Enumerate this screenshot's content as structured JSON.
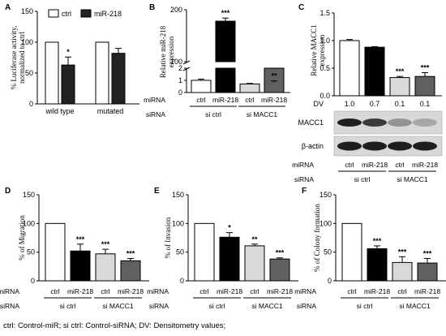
{
  "footnote": "ctrl: Control-miR; si ctrl: Control-siRNA; DV: Densitometry values;",
  "colors": {
    "white": "#ffffff",
    "black": "#000000",
    "light_gray": "#d9d9d9",
    "dark_gray": "#606060",
    "axis": "#000000"
  },
  "chart_data": [
    {
      "panel": "A",
      "type": "bar",
      "ylabel": "% Luciferase activity, normalized to ctrl",
      "ylim": [
        0,
        150
      ],
      "yticks": [
        0,
        50,
        100,
        150
      ],
      "categories": [
        "wild type",
        "mutated"
      ],
      "legend": {
        "position": "top",
        "entries": [
          {
            "name": "ctrl",
            "color": "#ffffff"
          },
          {
            "name": "miR-218",
            "color": "#222222"
          }
        ]
      },
      "series": [
        {
          "name": "ctrl",
          "color": "#ffffff",
          "values": [
            100,
            100
          ],
          "errors": [
            0,
            0
          ],
          "stars": [
            "",
            ""
          ]
        },
        {
          "name": "miR-218",
          "color": "#222222",
          "values": [
            63,
            82
          ],
          "errors": [
            13,
            8
          ],
          "stars": [
            "*",
            ""
          ]
        }
      ]
    },
    {
      "panel": "B",
      "type": "bar",
      "ylabel": "Relative miR-218 expression",
      "broken_axis": true,
      "yticks": [
        0,
        1,
        2,
        100,
        200
      ],
      "bars": [
        {
          "miRNA": "ctrl",
          "value": 1.0,
          "error": 0.1,
          "color": "#ffffff",
          "star": ""
        },
        {
          "miRNA": "miR-218",
          "value": 178,
          "error": 6,
          "color": "#000000",
          "star": "***"
        },
        {
          "miRNA": "ctrl",
          "value": 0.7,
          "error": 0.05,
          "color": "#d9d9d9",
          "star": ""
        },
        {
          "miRNA": "miR-218",
          "value": 60,
          "error": 3,
          "color": "#606060",
          "star": "**"
        }
      ],
      "row_labels": {
        "miRNA": "miRNA",
        "siRNA": "siRNA"
      },
      "groups": [
        "si ctrl",
        "si MACC1"
      ]
    },
    {
      "panel": "C",
      "type": "bar",
      "ylabel": "Relative MACC1 expression",
      "ylim": [
        0,
        1.5
      ],
      "yticks": [
        "0.0",
        "0.5",
        "1.0",
        "1.5"
      ],
      "bars": [
        {
          "miRNA": "ctrl",
          "value": 1.0,
          "error": 0.02,
          "color": "#ffffff",
          "star": ""
        },
        {
          "miRNA": "miR-218",
          "value": 0.88,
          "error": 0.01,
          "color": "#000000",
          "star": ""
        },
        {
          "miRNA": "ctrl",
          "value": 0.33,
          "error": 0.02,
          "color": "#d9d9d9",
          "star": "***"
        },
        {
          "miRNA": "miR-218",
          "value": 0.35,
          "error": 0.07,
          "color": "#606060",
          "star": "***"
        }
      ],
      "dv_label": "DV",
      "dv_values": [
        "1.0",
        "0.7",
        "0.1",
        "0.1"
      ],
      "blot_labels": [
        "MACC1",
        "β-actin"
      ],
      "row_labels": {
        "miRNA": "miRNA",
        "siRNA": "siRNA"
      },
      "groups": [
        "si ctrl",
        "si MACC1"
      ]
    },
    {
      "panel": "D",
      "type": "bar",
      "ylabel": "% of Migration",
      "ylim": [
        0,
        150
      ],
      "yticks": [
        0,
        50,
        100,
        150
      ],
      "bars": [
        {
          "miRNA": "ctrl",
          "value": 100,
          "error": 0,
          "color": "#ffffff",
          "star": ""
        },
        {
          "miRNA": "miR-218",
          "value": 52,
          "error": 12,
          "color": "#000000",
          "star": "***"
        },
        {
          "miRNA": "ctrl",
          "value": 47,
          "error": 8,
          "color": "#d9d9d9",
          "star": "***"
        },
        {
          "miRNA": "miR-218",
          "value": 35,
          "error": 4,
          "color": "#606060",
          "star": "***"
        }
      ],
      "row_labels": {
        "miRNA": "miRNA",
        "siRNA": "siRNA"
      },
      "groups": [
        "si ctrl",
        "si MACC1"
      ]
    },
    {
      "panel": "E",
      "type": "bar",
      "ylabel": "% of Invasion",
      "ylim": [
        0,
        150
      ],
      "yticks": [
        0,
        50,
        100,
        150
      ],
      "bars": [
        {
          "miRNA": "ctrl",
          "value": 100,
          "error": 0,
          "color": "#ffffff",
          "star": ""
        },
        {
          "miRNA": "miR-218",
          "value": 76,
          "error": 8,
          "color": "#000000",
          "star": "*"
        },
        {
          "miRNA": "ctrl",
          "value": 61,
          "error": 3,
          "color": "#d9d9d9",
          "star": "**"
        },
        {
          "miRNA": "miR-218",
          "value": 38,
          "error": 2,
          "color": "#606060",
          "star": "***"
        }
      ],
      "row_labels": {
        "miRNA": "miRNA",
        "siRNA": "siRNA"
      },
      "groups": [
        "si ctrl",
        "si MACC1"
      ]
    },
    {
      "panel": "F",
      "type": "bar",
      "ylabel": "% of Colony formation",
      "ylim": [
        0,
        150
      ],
      "yticks": [
        0,
        50,
        100,
        150
      ],
      "bars": [
        {
          "miRNA": "ctrl",
          "value": 100,
          "error": 0,
          "color": "#ffffff",
          "star": ""
        },
        {
          "miRNA": "miR-218",
          "value": 56,
          "error": 5,
          "color": "#000000",
          "star": "***"
        },
        {
          "miRNA": "ctrl",
          "value": 32,
          "error": 10,
          "color": "#d9d9d9",
          "star": "***"
        },
        {
          "miRNA": "miR-218",
          "value": 31,
          "error": 8,
          "color": "#606060",
          "star": "***"
        }
      ],
      "row_labels": {
        "miRNA": "miRNA",
        "siRNA": "siRNA"
      },
      "groups": [
        "si ctrl",
        "si MACC1"
      ]
    }
  ]
}
